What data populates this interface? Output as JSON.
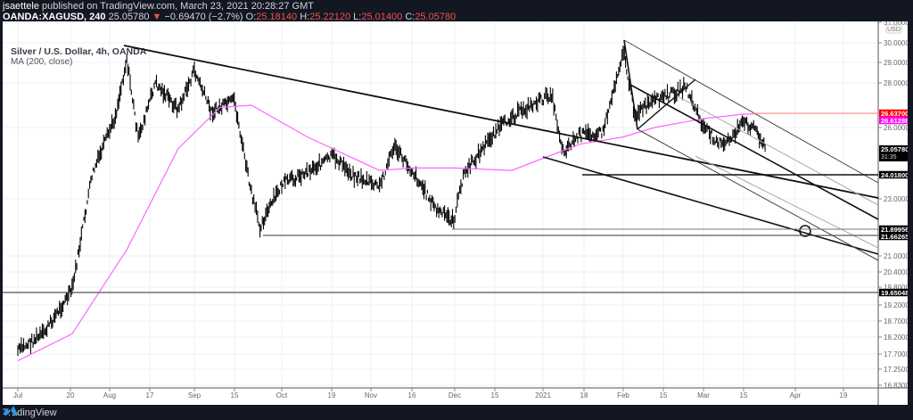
{
  "header": {
    "author": "jsaettele",
    "published_text": "published on TradingView.com, March 23, 2021 20:28:27 GMT",
    "symbol": "OANDA:XAGUSD, 240",
    "last": "25.05780",
    "change": "−0.69470 (−2.7%)",
    "open_label": "O:",
    "open": "25.18140",
    "high_label": "H:",
    "high": "25.22120",
    "low_label": "L:",
    "low": "25.01400",
    "close_label": "C:",
    "close": "25.05780"
  },
  "legend": {
    "title": "Silver / U.S. Dollar, 4h, OANDA",
    "indicator": "MA (200, close)"
  },
  "footer": {
    "brand": "TradingView"
  },
  "colors": {
    "background": "#131722",
    "plot": "#ffffff",
    "grid": "#e9f0f7",
    "candles": "#000000",
    "ma": "#ff66ff",
    "resistance_line": "#ff8a8a",
    "label_red": "#ff0000",
    "label_magenta": "#ff00ff",
    "label_dark": "#000000"
  },
  "chart_data": {
    "type": "line",
    "title": "Silver / U.S. Dollar, 4h, OANDA",
    "currency": "USD",
    "xlabel": "",
    "ylabel": "USD",
    "ylim": [
      16.83,
      31.0
    ],
    "grid": true,
    "x_ticks": [
      "Jul",
      "20",
      "Aug",
      "17",
      "Sep",
      "15",
      "Oct",
      "19",
      "Nov",
      "16",
      "Dec",
      "15",
      "2021",
      "18",
      "Feb",
      "15",
      "Mar",
      "15",
      "Apr",
      "19"
    ],
    "y_ticks": [
      "31.00000",
      "30.00000",
      "29.00000",
      "28.00000",
      "26.00000",
      "23.00000",
      "21.00000",
      "20.40000",
      "19.80000",
      "19.20000",
      "18.70000",
      "18.20000",
      "17.70000",
      "17.25000",
      "16.83000"
    ],
    "price_labels": [
      {
        "value": "26.63700",
        "color": "#ff0000",
        "meaning": "horizontal resistance"
      },
      {
        "value": "26.61288",
        "color": "#ff00ff",
        "meaning": "MA(200) current"
      },
      {
        "value": "25.05780",
        "sub": "31:35",
        "color": "#000000",
        "meaning": "last price / bar countdown"
      },
      {
        "value": "24.01800",
        "color": "#000000",
        "meaning": "horizontal support"
      },
      {
        "value": "21.89956",
        "color": "#000000",
        "meaning": "horizontal support"
      },
      {
        "value": "21.66265",
        "color": "#000000",
        "meaning": "horizontal support"
      },
      {
        "value": "19.65048",
        "color": "#000000",
        "meaning": "horizontal level"
      }
    ],
    "series": [
      {
        "name": "XAGUSD close (approx)",
        "x": [
          "Jul 1",
          "Jul 10",
          "Jul 20",
          "Jul 27",
          "Aug 3",
          "Aug 7",
          "Aug 11",
          "Aug 17",
          "Aug 25",
          "Sep 1",
          "Sep 7",
          "Sep 15",
          "Sep 21",
          "Sep 24",
          "Oct 1",
          "Oct 9",
          "Oct 19",
          "Oct 26",
          "Nov 4",
          "Nov 9",
          "Nov 16",
          "Nov 24",
          "Nov 30",
          "Dec 4",
          "Dec 15",
          "Dec 21",
          "Jan 4",
          "Jan 8",
          "Jan 14",
          "Jan 22",
          "Feb 1",
          "Feb 5",
          "Feb 12",
          "Feb 23",
          "Mar 1",
          "Mar 8",
          "Mar 15",
          "Mar 19",
          "Mar 23"
        ],
        "values": [
          17.8,
          18.3,
          19.7,
          24.0,
          26.5,
          29.2,
          25.5,
          28.0,
          26.8,
          28.6,
          26.7,
          27.2,
          23.2,
          22.0,
          23.6,
          24.1,
          24.8,
          24.0,
          23.5,
          25.2,
          24.1,
          22.6,
          22.2,
          24.0,
          25.8,
          26.5,
          27.5,
          25.0,
          25.7,
          25.8,
          29.6,
          26.6,
          27.2,
          27.8,
          26.0,
          25.2,
          26.2,
          26.0,
          25.06
        ]
      },
      {
        "name": "MA (200, close)",
        "x": [
          "Jul 1",
          "Jul 20",
          "Aug 7",
          "Aug 25",
          "Sep 10",
          "Sep 21",
          "Oct 10",
          "Nov 4",
          "Nov 16",
          "Dec 1",
          "Dec 21",
          "Jan 14",
          "Feb 1",
          "Feb 12",
          "Mar 1",
          "Mar 15",
          "Mar 19"
        ],
        "values": [
          17.5,
          18.3,
          21.2,
          25.1,
          26.9,
          27.0,
          25.6,
          24.2,
          24.3,
          24.3,
          24.2,
          25.3,
          25.6,
          26.0,
          26.4,
          26.6,
          26.61
        ]
      }
    ],
    "annotations": [
      {
        "type": "trendline",
        "from": [
          "Aug 7",
          29.9
        ],
        "to": [
          "Apr 1",
          24.0
        ],
        "desc": "descending resistance from Aug high"
      },
      {
        "type": "trendline",
        "from": [
          "Jan 4",
          24.3
        ],
        "to": [
          "Apr 24",
          20.7
        ],
        "desc": "lower trendline"
      },
      {
        "type": "pitchfork",
        "desc": "descending channel from Feb 1 high 30.1"
      },
      {
        "type": "circle",
        "at": [
          "Apr 1",
          21.9
        ]
      },
      {
        "type": "hline",
        "value": 26.637,
        "from": "Mar 19",
        "color": "#ff8a8a"
      },
      {
        "type": "hline",
        "value": 24.018,
        "from": "Jan 18"
      },
      {
        "type": "hline",
        "value": 21.89956,
        "from": "Dec 1"
      },
      {
        "type": "hline",
        "value": 21.66265,
        "from": "Sep 24"
      },
      {
        "type": "hline",
        "value": 19.65048,
        "from": "Jul 1"
      }
    ]
  }
}
